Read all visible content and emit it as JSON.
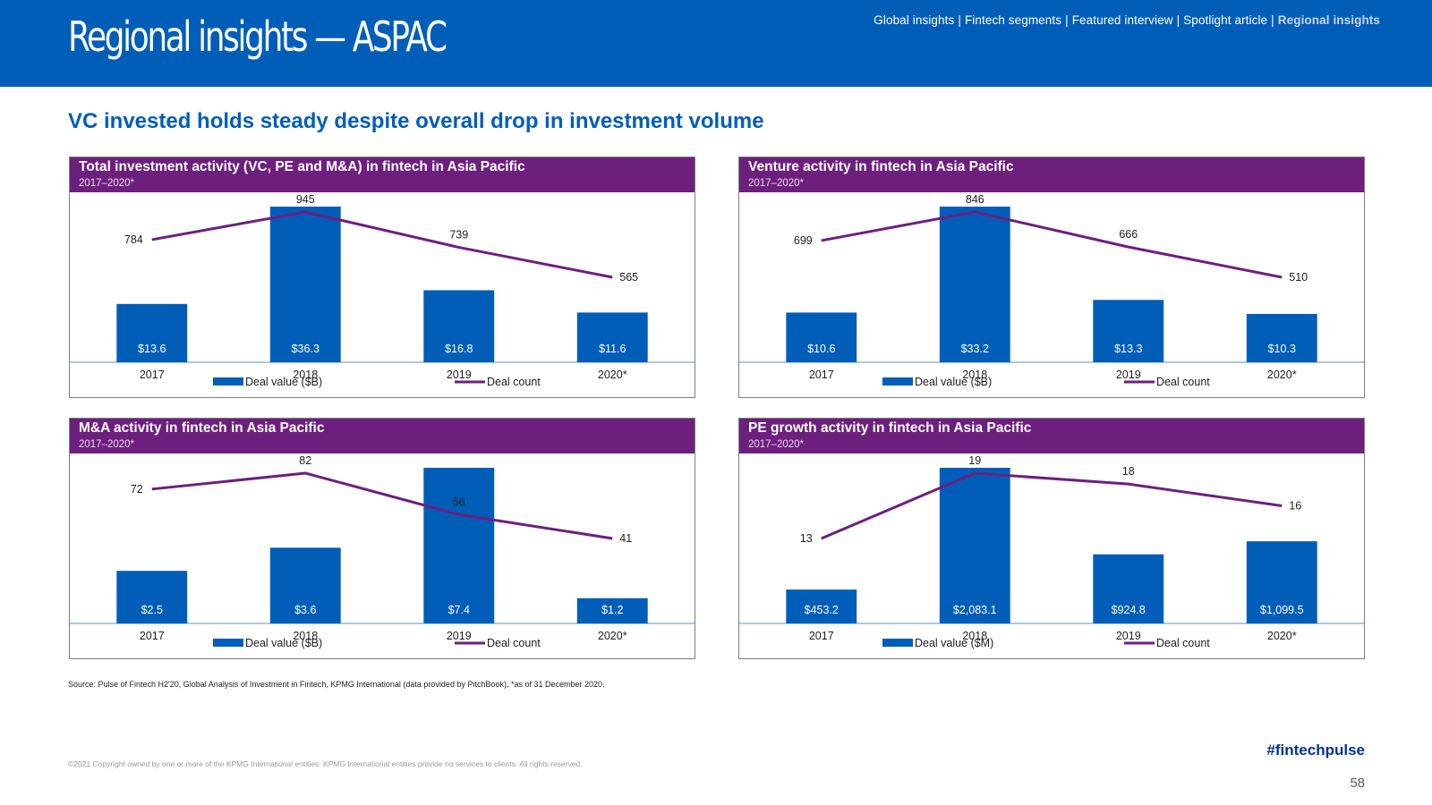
{
  "header": {
    "title": "Regional insights — ASPAC",
    "nav": [
      {
        "label": "Global insights",
        "active": false
      },
      {
        "label": "Fintech segments",
        "active": false
      },
      {
        "label": "Featured interview",
        "active": false
      },
      {
        "label": "Spotlight article",
        "active": false
      },
      {
        "label": "Regional insights",
        "active": true
      }
    ],
    "nav_separator": "|"
  },
  "headline": "VC invested holds steady despite overall drop in investment volume",
  "colors": {
    "brand_blue": "#005eb8",
    "bar_blue": "#005eb8",
    "line_purple": "#6d1f7e",
    "panel_header": "#6d1f7e"
  },
  "chart_data": [
    {
      "type": "bar",
      "title": "Total investment activity (VC, PE and M&A) in fintech in Asia Pacific",
      "subtitle": "2017–2020*",
      "categories": [
        "2017",
        "2018",
        "2019",
        "2020*"
      ],
      "series": [
        {
          "name": "Deal value ($B)",
          "type": "bar",
          "values": [
            13.6,
            36.3,
            16.8,
            11.6
          ],
          "labels": [
            "$13.6",
            "$36.3",
            "$16.8",
            "$11.6"
          ]
        },
        {
          "name": "Deal count",
          "type": "line",
          "values": [
            784,
            945,
            739,
            565
          ],
          "labels": [
            "784",
            "945",
            "739",
            "565"
          ]
        }
      ],
      "legend_position": "bottom",
      "grid": false
    },
    {
      "type": "bar",
      "title": "Venture activity in fintech in Asia Pacific",
      "subtitle": "2017–2020*",
      "categories": [
        "2017",
        "2018",
        "2019",
        "2020*"
      ],
      "series": [
        {
          "name": "Deal value ($B)",
          "type": "bar",
          "values": [
            10.6,
            33.2,
            13.3,
            10.3
          ],
          "labels": [
            "$10.6",
            "$33.2",
            "$13.3",
            "$10.3"
          ]
        },
        {
          "name": "Deal count",
          "type": "line",
          "values": [
            699,
            846,
            666,
            510
          ],
          "labels": [
            "699",
            "846",
            "666",
            "510"
          ]
        }
      ],
      "legend_position": "bottom",
      "grid": false
    },
    {
      "type": "bar",
      "title": "M&A activity in fintech in Asia Pacific",
      "subtitle": "2017–2020*",
      "categories": [
        "2017",
        "2018",
        "2019",
        "2020*"
      ],
      "series": [
        {
          "name": "Deal value ($B)",
          "type": "bar",
          "values": [
            2.5,
            3.6,
            7.4,
            1.2
          ],
          "labels": [
            "$2.5",
            "$3.6",
            "$7.4",
            "$1.2"
          ]
        },
        {
          "name": "Deal count",
          "type": "line",
          "values": [
            72,
            82,
            56,
            41
          ],
          "labels": [
            "72",
            "82",
            "56",
            "41"
          ]
        }
      ],
      "legend_position": "bottom",
      "grid": false
    },
    {
      "type": "bar",
      "title": "PE growth activity in fintech in Asia Pacific",
      "subtitle": "2017–2020*",
      "categories": [
        "2017",
        "2018",
        "2019",
        "2020*"
      ],
      "series": [
        {
          "name": "Deal value ($M)",
          "type": "bar",
          "values": [
            453.2,
            2083.1,
            924.8,
            1099.5
          ],
          "labels": [
            "$453.2",
            "$2,083.1",
            "$924.8",
            "$1,099.5"
          ]
        },
        {
          "name": "Deal count",
          "type": "line",
          "values": [
            13,
            19,
            18,
            16
          ],
          "labels": [
            "13",
            "19",
            "18",
            "16"
          ]
        }
      ],
      "legend_position": "bottom",
      "grid": false
    }
  ],
  "footer": {
    "source": "Source: Pulse of Fintech H2'20, Global Analysis of Investment in Fintech, KPMG International (data provided by PitchBook), *as of 31 December 2020.",
    "copyright": "©2021 Copyright owned by one or more of the KPMG International entities. KPMG International entities provide no services to clients. All rights reserved.",
    "hashtag": "#fintechpulse",
    "page_number": "58"
  }
}
